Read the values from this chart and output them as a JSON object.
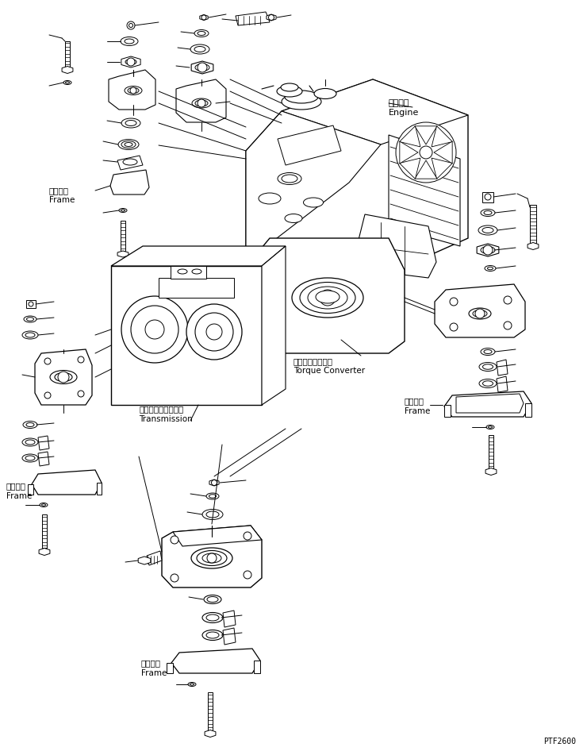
{
  "background_color": "#ffffff",
  "line_color": "#000000",
  "fig_width": 7.4,
  "fig_height": 9.51,
  "dpi": 100,
  "watermark": "PTF2600",
  "labels": {
    "engine_jp": "エンジン",
    "engine_en": "Engine",
    "torque_converter_jp": "トルクコンバータ",
    "torque_converter_en": "Torque Converter",
    "transmission_jp": "トランスミッション",
    "transmission_en": "Transmission",
    "frame_jp": "フレーム",
    "frame_en": "Frame"
  }
}
